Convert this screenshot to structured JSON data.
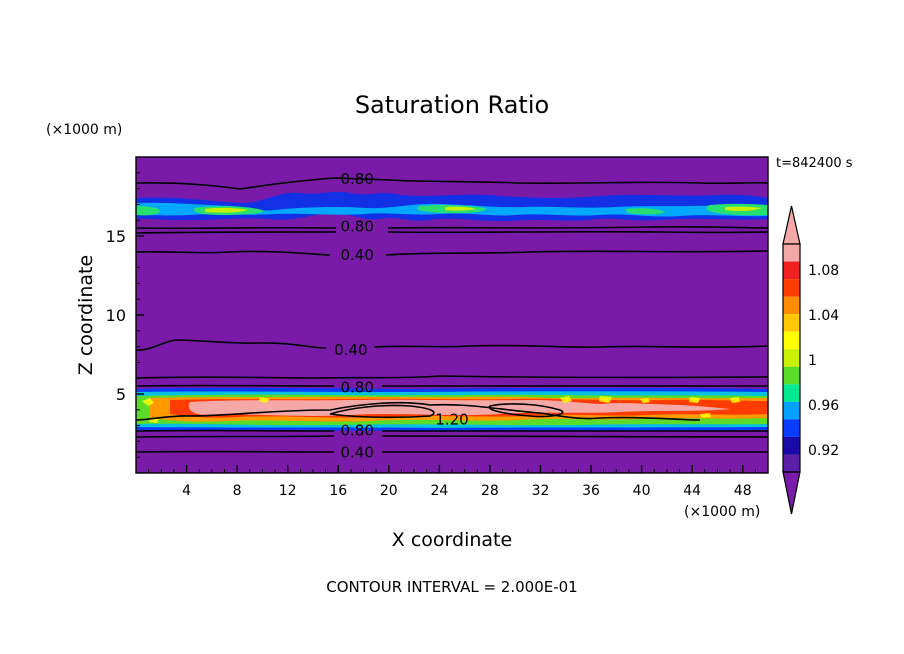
{
  "chart_data": {
    "type": "heatmap",
    "title": "Saturation Ratio",
    "xlabel": "X coordinate",
    "ylabel": "Z coordinate",
    "x_unit": "(×1000 m)",
    "y_unit": "(×1000 m)",
    "time_label": "t=842400 s",
    "footer": "CONTOUR INTERVAL = 2.000E-01",
    "xlim": [
      0,
      50
    ],
    "ylim": [
      0,
      20
    ],
    "x_ticks": [
      4,
      8,
      12,
      16,
      20,
      24,
      28,
      32,
      36,
      40,
      44,
      48
    ],
    "y_ticks": [
      5,
      10,
      15
    ],
    "colorbar": {
      "labels": [
        "0.92",
        "0.96",
        "1",
        "1.04",
        "1.08"
      ],
      "colors": [
        "#5a1fa6",
        "#1a0aa8",
        "#0a3cff",
        "#00a0ff",
        "#00e890",
        "#5adc28",
        "#c8f000",
        "#ffff00",
        "#ffc800",
        "#ff8c00",
        "#ff3c00",
        "#f02020",
        "#f5a8a8"
      ],
      "under_color": "#7a1aa8",
      "over_color": "#f5a8a8"
    },
    "contour_labels": [
      {
        "text": "0.80",
        "x": 17.5,
        "z": 18.6
      },
      {
        "text": "0.80",
        "x": 17.5,
        "z": 15.6
      },
      {
        "text": "0.40",
        "x": 17.5,
        "z": 13.8
      },
      {
        "text": "0.40",
        "x": 17.0,
        "z": 7.8
      },
      {
        "text": "0.80",
        "x": 17.5,
        "z": 5.4
      },
      {
        "text": "1.20",
        "x": 25.0,
        "z": 3.4
      },
      {
        "text": "0.80",
        "x": 17.5,
        "z": 2.7
      },
      {
        "text": "0.40",
        "x": 17.5,
        "z": 1.3
      }
    ],
    "field": {
      "background": "#7a1aa8",
      "upper_band": {
        "z_range": [
          15.6,
          17.2
        ],
        "peak_value": 1.0
      },
      "lower_band": {
        "z_range": [
          2.8,
          5.2
        ],
        "peak_value": 1.2
      }
    }
  }
}
